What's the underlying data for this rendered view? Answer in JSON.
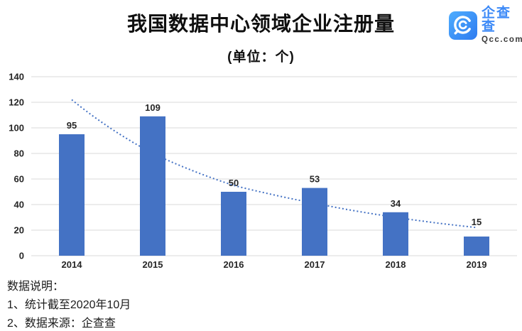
{
  "logo": {
    "brand": "企查查",
    "domain": "Qcc.com"
  },
  "footer": {
    "heading": "数据说明：",
    "notes": [
      "1、统计截至2020年10月",
      "2、数据来源：企查查"
    ]
  },
  "chart_data": {
    "type": "bar",
    "title": "我国数据中心领域企业注册量",
    "subtitle": "(单位：个)",
    "categories": [
      "2014",
      "2015",
      "2016",
      "2017",
      "2018",
      "2019"
    ],
    "values": [
      95,
      109,
      50,
      53,
      34,
      15
    ],
    "xlabel": "",
    "ylabel": "",
    "ylim": [
      0,
      140
    ],
    "yticks": [
      0,
      20,
      40,
      60,
      80,
      100,
      120,
      140
    ],
    "grid": true,
    "legend": false,
    "bar_color": "#4472C4",
    "gridline_color": "#D9D9D9",
    "label_color": "#262626",
    "trendline": {
      "style": "dotted",
      "color": "#4472C4",
      "values": [
        122,
        80,
        55,
        41,
        30,
        22
      ]
    },
    "label_raise": [
      0,
      0,
      0,
      0,
      0,
      8
    ]
  }
}
